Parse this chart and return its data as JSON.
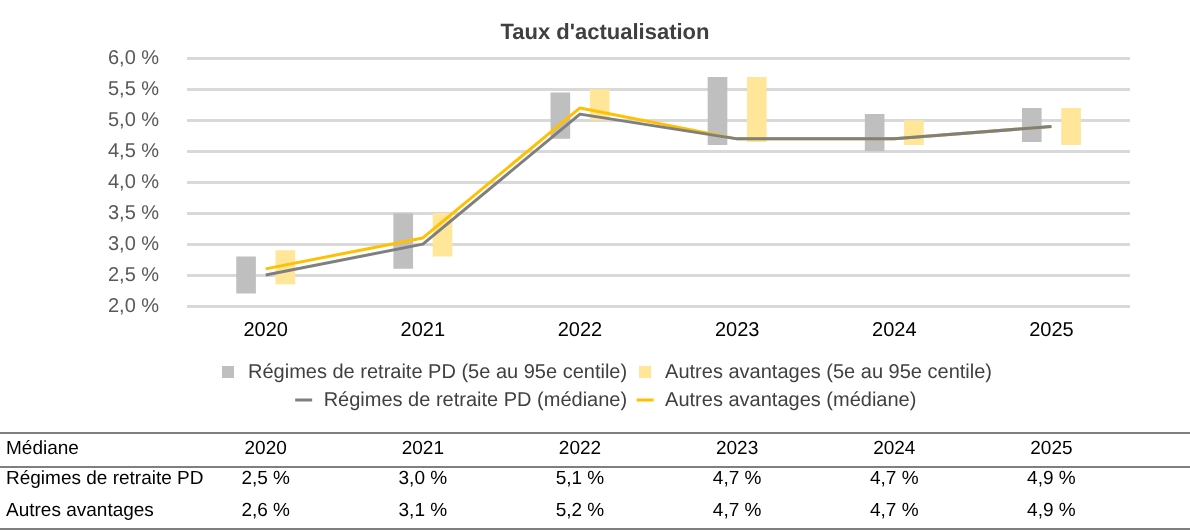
{
  "chart_data": {
    "type": "bar",
    "title": "Taux d'actualisation",
    "categories": [
      "2020",
      "2021",
      "2022",
      "2023",
      "2024",
      "2025"
    ],
    "series": [
      {
        "name": "Régimes de retraite PD (5e au 95e centile)",
        "color": "#bfbfbf",
        "base": [
          2.2,
          2.6,
          4.7,
          4.6,
          4.5,
          4.65
        ],
        "values": [
          0.6,
          0.9,
          0.75,
          1.1,
          0.6,
          0.55
        ]
      },
      {
        "name": "Autres avantages (5e au 95e centile)",
        "color": "#ffe699",
        "base": [
          2.35,
          2.8,
          5.0,
          4.65,
          4.6,
          4.6
        ],
        "values": [
          0.55,
          0.7,
          0.5,
          1.05,
          0.4,
          0.6
        ]
      },
      {
        "name": "Régimes de retraite PD (médiane)",
        "type": "line",
        "color": "#7f7f7f",
        "values": [
          2.5,
          3.0,
          5.1,
          4.7,
          4.7,
          4.9
        ],
        "value_labels": [
          "2,5 %",
          "3,0 %",
          "5,1 %",
          "4,7 %",
          "4,7 %",
          "4,9 %"
        ]
      },
      {
        "name": "Autres avantages (médiane)",
        "type": "line",
        "color": "#ffc000",
        "values": [
          2.6,
          3.1,
          5.2,
          4.7,
          4.7,
          4.9
        ],
        "value_labels": [
          "2,6 %",
          "3,1 %",
          "5,2 %",
          "4,7 %",
          "4,7 %",
          "4,9 %"
        ]
      }
    ],
    "ylim": [
      2.0,
      6.0
    ],
    "yticks": [
      {
        "value": 2.0,
        "label": "2,0 %"
      },
      {
        "value": 2.5,
        "label": "2,5 %"
      },
      {
        "value": 3.0,
        "label": "3,0 %"
      },
      {
        "value": 3.5,
        "label": "3,5 %"
      },
      {
        "value": 4.0,
        "label": "4,0 %"
      },
      {
        "value": 4.5,
        "label": "4,5 %"
      },
      {
        "value": 5.0,
        "label": "5,0 %"
      },
      {
        "value": 5.5,
        "label": "5,5 %"
      },
      {
        "value": 6.0,
        "label": "6,0 %"
      }
    ],
    "grid": "y",
    "legend": "bottom",
    "marker": "none",
    "annotations": [
      "Médiane",
      "Régimes de retraite PD",
      "Autres avantages"
    ]
  }
}
